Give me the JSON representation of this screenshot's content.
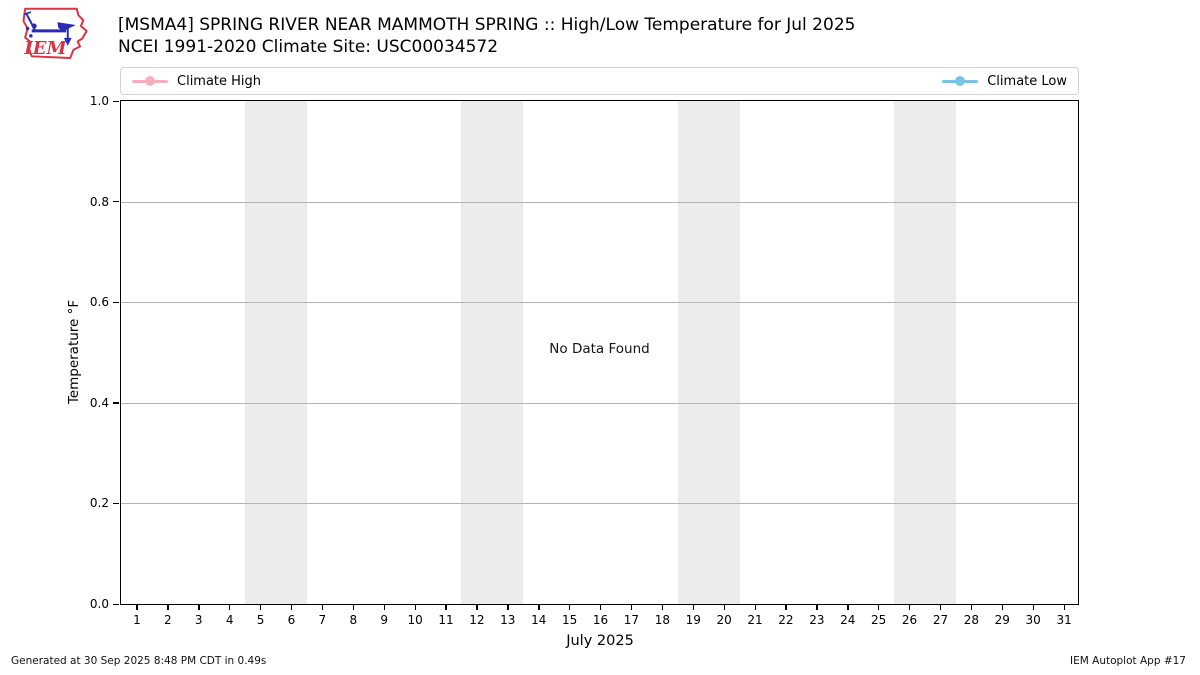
{
  "header": {
    "logo_text": "IEM",
    "title_line1": "[MSMA4] SPRING RIVER NEAR MAMMOTH SPRING :: High/Low Temperature for Jul 2025",
    "title_line2": "NCEI 1991-2020 Climate Site: USC00034572"
  },
  "legend": {
    "items": [
      {
        "label": "Climate High",
        "color": "#f7aebd"
      },
      {
        "label": "Climate Low",
        "color": "#7bc3e4"
      }
    ]
  },
  "chart_data": {
    "type": "line",
    "title": "[MSMA4] SPRING RIVER NEAR MAMMOTH SPRING :: High/Low Temperature for Jul 2025",
    "subtitle": "NCEI 1991-2020 Climate Site: USC00034572",
    "xlabel": "July 2025",
    "ylabel": "Temperature °F",
    "no_data_message": "No Data Found",
    "x_ticks": [
      1,
      2,
      3,
      4,
      5,
      6,
      7,
      8,
      9,
      10,
      11,
      12,
      13,
      14,
      15,
      16,
      17,
      18,
      19,
      20,
      21,
      22,
      23,
      24,
      25,
      26,
      27,
      28,
      29,
      30,
      31
    ],
    "y_ticks": [
      0.0,
      0.2,
      0.4,
      0.6,
      0.8,
      1.0
    ],
    "xlim": [
      0.484,
      31.45
    ],
    "ylim": [
      0.0,
      1.0
    ],
    "grid": true,
    "legend_position": "top",
    "series": [
      {
        "name": "Climate High",
        "color": "#f7aebd",
        "values": []
      },
      {
        "name": "Climate Low",
        "color": "#7bc3e4",
        "values": []
      }
    ],
    "weekend_bands": [
      [
        4.5,
        6.5
      ],
      [
        11.5,
        13.5
      ],
      [
        18.5,
        20.5
      ],
      [
        25.5,
        27.5
      ]
    ],
    "band_color": "#ececec",
    "grid_color": "#b4b4b4"
  },
  "footer": {
    "generated": "Generated at 30 Sep 2025 8:48 PM CDT in 0.49s",
    "app": "IEM Autoplot App #17"
  }
}
